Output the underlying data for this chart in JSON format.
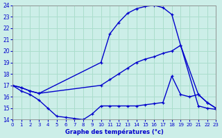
{
  "title": "Graphe des températures (°c)",
  "bg_color": "#cceee8",
  "grid_color": "#aaddcc",
  "line_color": "#0000cc",
  "xlim": [
    0,
    23
  ],
  "ylim": [
    14,
    24
  ],
  "xticks": [
    0,
    1,
    2,
    3,
    4,
    5,
    6,
    7,
    8,
    9,
    10,
    11,
    12,
    13,
    14,
    15,
    16,
    17,
    18,
    19,
    20,
    21,
    22,
    23
  ],
  "yticks": [
    14,
    15,
    16,
    17,
    18,
    19,
    20,
    21,
    22,
    23,
    24
  ],
  "line1_x": [
    0,
    1,
    2,
    3,
    10,
    11,
    12,
    13,
    14,
    15,
    16,
    17,
    18,
    19,
    21,
    22,
    23
  ],
  "line1_y": [
    17.0,
    16.8,
    16.5,
    16.3,
    19.0,
    21.5,
    22.5,
    23.3,
    23.7,
    23.9,
    24.0,
    23.8,
    23.2,
    20.5,
    15.2,
    15.0,
    14.9
  ],
  "line2_x": [
    0,
    1,
    2,
    3,
    10,
    11,
    12,
    13,
    14,
    15,
    16,
    17,
    18,
    19,
    21,
    22,
    23
  ],
  "line2_y": [
    17.0,
    16.8,
    16.5,
    16.3,
    17.0,
    17.5,
    18.0,
    18.5,
    19.0,
    19.3,
    19.5,
    19.8,
    20.0,
    20.5,
    16.2,
    15.5,
    15.0
  ],
  "line3_x": [
    0,
    1,
    2,
    3,
    4,
    5,
    6,
    7,
    8,
    9,
    10,
    11,
    12,
    13,
    14,
    15,
    16,
    17,
    18,
    19,
    20,
    21,
    22,
    23
  ],
  "line3_y": [
    17.0,
    16.5,
    16.2,
    15.7,
    15.0,
    14.3,
    14.2,
    14.1,
    14.0,
    14.5,
    15.2,
    15.2,
    15.2,
    15.2,
    15.2,
    15.3,
    15.4,
    15.5,
    17.8,
    16.2,
    16.0,
    16.2,
    15.5,
    15.0
  ],
  "marker": "+"
}
